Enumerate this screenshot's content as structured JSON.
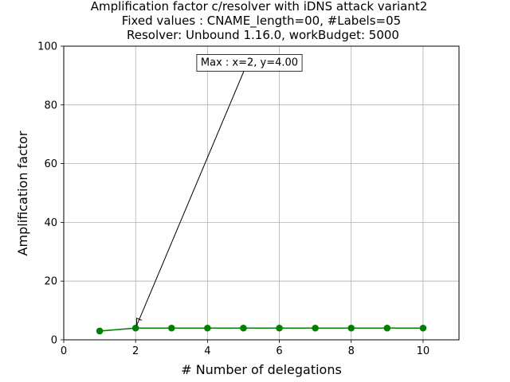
{
  "chart_data": {
    "type": "line",
    "title_lines": [
      "Amplification factor c/resolver with iDNS attack variant2",
      "Fixed values : CNAME_length=00, #Labels=05",
      "Resolver: Unbound 1.16.0, workBudget: 5000"
    ],
    "xlabel": "# Number of delegations",
    "ylabel": "Amplification factor",
    "xlim": [
      0,
      11
    ],
    "ylim": [
      0,
      100
    ],
    "x_ticks": [
      0,
      2,
      4,
      6,
      8,
      10
    ],
    "y_ticks": [
      0,
      20,
      40,
      60,
      80,
      100
    ],
    "grid": true,
    "series": [
      {
        "color": "#008000",
        "marker": "circle",
        "x": [
          1,
          2,
          3,
          4,
          5,
          6,
          7,
          8,
          9,
          10
        ],
        "y": [
          3,
          4,
          4,
          4,
          4,
          4,
          4,
          4,
          4,
          4
        ]
      }
    ],
    "annotation": {
      "text": "Max : x=2, y=4.00",
      "point": [
        2,
        4
      ]
    }
  }
}
